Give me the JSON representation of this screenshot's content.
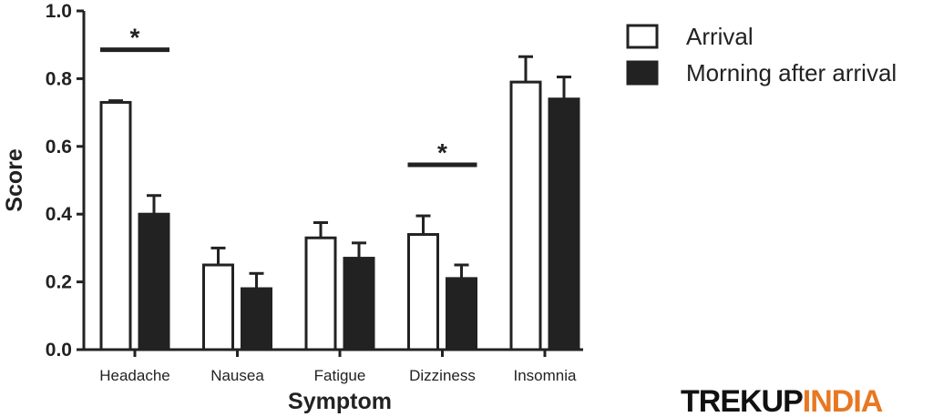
{
  "chart_data": {
    "type": "bar",
    "title": "",
    "xlabel": "Symptom",
    "ylabel": "Score",
    "ylim": [
      0,
      1.0
    ],
    "yticks": [
      "0.0",
      "0.2",
      "0.4",
      "0.6",
      "0.8",
      "1.0"
    ],
    "categories": [
      "Headache",
      "Nausea",
      "Fatigue",
      "Dizziness",
      "Insomnia"
    ],
    "series": [
      {
        "name": "Arrival",
        "fill": "#ffffff",
        "values": [
          0.73,
          0.25,
          0.33,
          0.34,
          0.79
        ],
        "errors": [
          0.005,
          0.05,
          0.045,
          0.055,
          0.075
        ]
      },
      {
        "name": "Morning after arrival",
        "fill": "#222222",
        "values": [
          0.4,
          0.18,
          0.27,
          0.21,
          0.74
        ],
        "errors": [
          0.055,
          0.045,
          0.045,
          0.04,
          0.065
        ]
      }
    ],
    "significance": [
      {
        "category": "Headache",
        "marker": "*"
      },
      {
        "category": "Dizziness",
        "marker": "*"
      }
    ],
    "legend_position": "top-right",
    "grid": false
  },
  "watermark": {
    "part1": "TREKUP",
    "part2": "INDIA",
    "color1": "#111111",
    "color2": "#e87722"
  }
}
